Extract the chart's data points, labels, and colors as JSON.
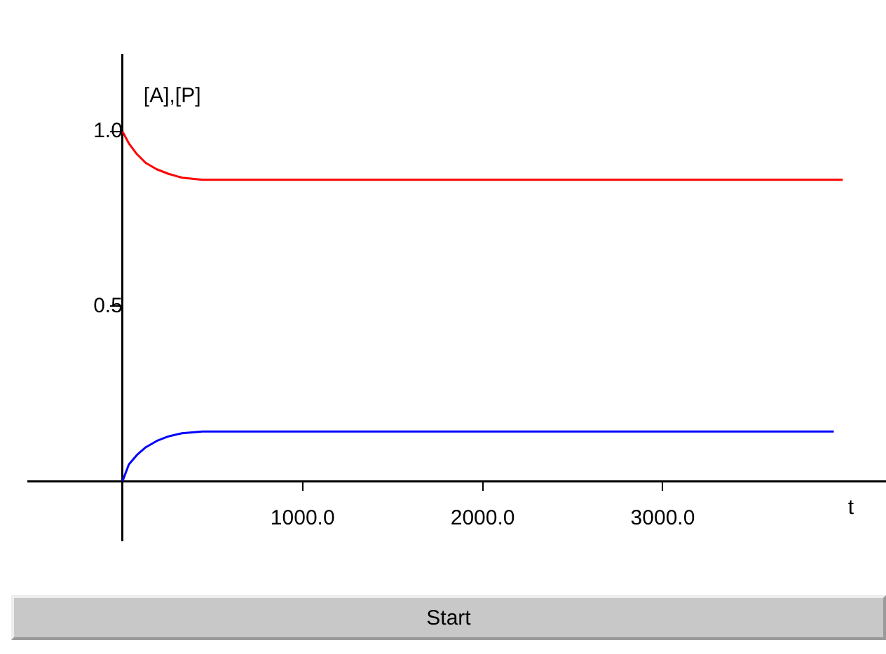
{
  "chart_data": {
    "type": "line",
    "xlabel": "t",
    "ylabel": "[A],[P]",
    "annotations": [
      "Start"
    ],
    "xlim": [
      -525,
      4240
    ],
    "ylim": [
      -0.17,
      1.22
    ],
    "xticks": [
      {
        "value": 1000,
        "label": "1000.0"
      },
      {
        "value": 2000,
        "label": "2000.0"
      },
      {
        "value": 3000,
        "label": "3000.0"
      }
    ],
    "yticks": [
      {
        "value": 0.5,
        "label": "0.5"
      },
      {
        "value": 1,
        "label": "1.0"
      }
    ],
    "grid": false,
    "marker": "none",
    "line_style": "solid",
    "series": [
      {
        "color": "#ff0000",
        "x": [
          0,
          35,
          80,
          129,
          190,
          255,
          330,
          443,
          1000,
          2000,
          3000,
          4000
        ],
        "values": [
          1,
          0.966,
          0.935,
          0.91,
          0.892,
          0.879,
          0.868,
          0.862,
          0.862,
          0.862,
          0.862,
          0.862
        ]
      },
      {
        "color": "#0000ff",
        "x": [
          0,
          35,
          80,
          129,
          190,
          255,
          330,
          443,
          1000,
          2000,
          3000,
          3950
        ],
        "values": [
          0,
          0.048,
          0.075,
          0.097,
          0.115,
          0.128,
          0.137,
          0.142,
          0.142,
          0.142,
          0.142,
          0.142
        ]
      }
    ]
  }
}
